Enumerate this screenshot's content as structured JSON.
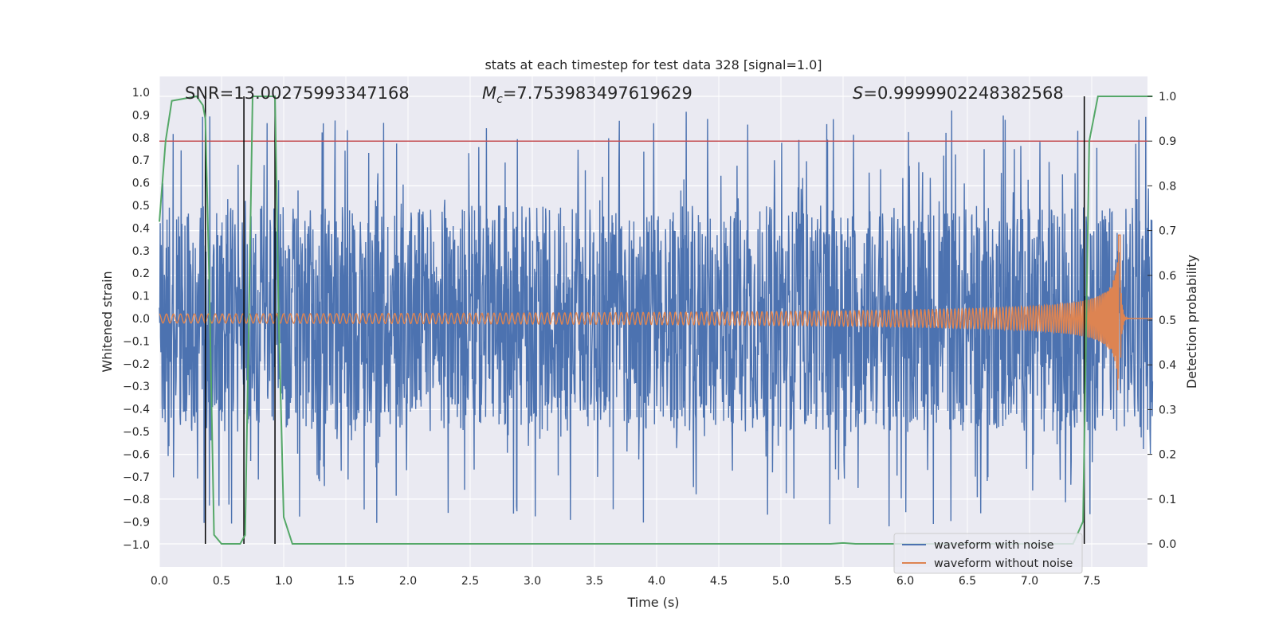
{
  "chart_data": {
    "type": "line",
    "title": "stats at each timestep for test data 328 [signal=1.0]",
    "xlabel": "Time (s)",
    "ylabel": "Whitened strain",
    "y2label": "Detection probability",
    "xlim": [
      0.0,
      8.0
    ],
    "ylim": [
      -1.1,
      1.05
    ],
    "y2lim": [
      -0.05,
      1.03
    ],
    "xticks": [
      "0.0",
      "0.5",
      "1.0",
      "1.5",
      "2.0",
      "2.5",
      "3.0",
      "3.5",
      "4.0",
      "4.5",
      "5.0",
      "5.5",
      "6.0",
      "6.5",
      "7.0",
      "7.5"
    ],
    "yticks": [
      "−1.0",
      "−0.9",
      "−0.8",
      "−0.7",
      "−0.6",
      "−0.5",
      "−0.4",
      "−0.3",
      "−0.2",
      "−0.1",
      "0.0",
      "0.1",
      "0.2",
      "0.3",
      "0.4",
      "0.5",
      "0.6",
      "0.7",
      "0.8",
      "0.9",
      "1.0"
    ],
    "y2ticks": [
      "0.0",
      "0.1",
      "0.2",
      "0.3",
      "0.4",
      "0.5",
      "0.6",
      "0.7",
      "0.8",
      "0.9",
      "1.0"
    ],
    "annotations": {
      "snr": "SNR=13.00275993347168",
      "mc_prefix": "M",
      "mc_sub": "c",
      "mc_value": "=7.753983497619629",
      "s_prefix": "S",
      "s_value": "=0.9999902248382568"
    },
    "threshold": {
      "value": 0.9,
      "axis": "y2",
      "color": "#c44e52"
    },
    "event_markers_s": [
      0.37,
      0.68,
      0.93,
      7.44
    ],
    "series": [
      {
        "name": "waveform with noise",
        "legend_label": "waveform with noise",
        "color": "#4c72b0",
        "description": "whitened noisy strain, envelope ~±0.5 with spikes to ±0.9",
        "envelope": 0.5,
        "spike_max": 0.92
      },
      {
        "name": "waveform without noise",
        "legend_label": "waveform without noise",
        "color": "#dd8452",
        "description": "chirp signal",
        "chirp_amplitude_start": 0.02,
        "chirp_peak_time": 7.7,
        "chirp_peak_amplitude": 0.38,
        "chirp_end_time": 7.73
      },
      {
        "name": "detection probability",
        "axis": "y2",
        "color": "#55a868",
        "x": [
          0.0,
          0.05,
          0.1,
          0.3,
          0.35,
          0.37,
          0.4,
          0.44,
          0.5,
          0.65,
          0.69,
          0.72,
          0.75,
          0.8,
          0.93,
          0.96,
          1.0,
          1.07,
          5.4,
          5.5,
          5.6,
          7.35,
          7.43,
          7.48,
          7.55,
          7.99
        ],
        "y": [
          0.72,
          0.9,
          0.99,
          1.0,
          0.98,
          0.95,
          0.6,
          0.02,
          0.0,
          0.0,
          0.02,
          0.5,
          1.0,
          1.0,
          1.0,
          0.5,
          0.06,
          0.0,
          0.0,
          0.002,
          0.0,
          0.0,
          0.05,
          0.9,
          1.0,
          1.0
        ]
      }
    ],
    "legend_location": "lower-right"
  }
}
